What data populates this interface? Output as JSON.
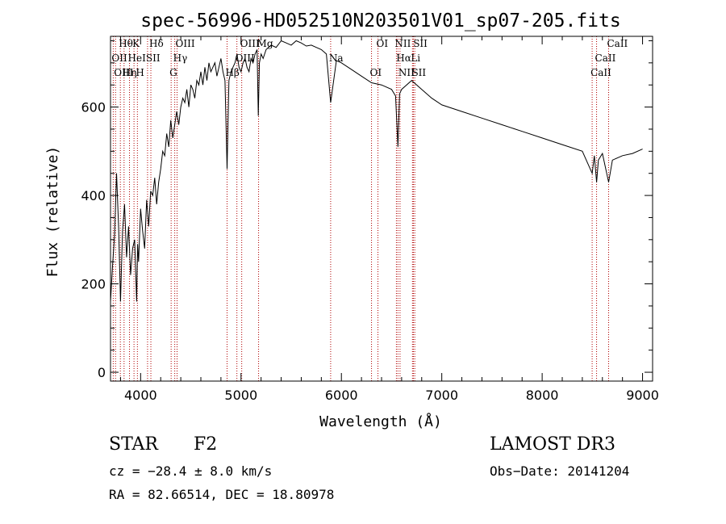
{
  "chart_data": {
    "type": "line",
    "title": "spec-56996-HD052510N203501V01_sp07-205.fits",
    "xlabel": "Wavelength (Å)",
    "ylabel": "Flux (relative)",
    "xlim": [
      3700,
      9100
    ],
    "ylim": [
      -20,
      760
    ],
    "x_ticks": [
      4000,
      5000,
      6000,
      7000,
      8000,
      9000
    ],
    "y_ticks": [
      0,
      200,
      400,
      600
    ],
    "series": [
      {
        "name": "flux",
        "x": [
          3700,
          3720,
          3740,
          3760,
          3780,
          3800,
          3820,
          3840,
          3860,
          3880,
          3900,
          3920,
          3940,
          3960,
          3970,
          3980,
          4000,
          4020,
          4040,
          4060,
          4080,
          4100,
          4120,
          4140,
          4160,
          4180,
          4200,
          4220,
          4240,
          4260,
          4280,
          4300,
          4320,
          4340,
          4360,
          4380,
          4400,
          4420,
          4440,
          4460,
          4480,
          4500,
          4520,
          4540,
          4560,
          4580,
          4600,
          4620,
          4640,
          4660,
          4680,
          4700,
          4720,
          4740,
          4760,
          4780,
          4800,
          4820,
          4840,
          4861,
          4880,
          4900,
          4920,
          4940,
          4960,
          4980,
          5000,
          5020,
          5040,
          5060,
          5080,
          5100,
          5120,
          5140,
          5160,
          5172,
          5183,
          5200,
          5220,
          5250,
          5300,
          5350,
          5400,
          5450,
          5500,
          5550,
          5600,
          5650,
          5700,
          5750,
          5800,
          5850,
          5893,
          5950,
          6000,
          6100,
          6200,
          6300,
          6400,
          6500,
          6540,
          6563,
          6580,
          6600,
          6700,
          6800,
          6900,
          7000,
          7200,
          7400,
          7600,
          7800,
          8000,
          8200,
          8400,
          8498,
          8520,
          8542,
          8560,
          8600,
          8662,
          8700,
          8800,
          8900,
          9000
        ],
        "values": [
          160,
          240,
          310,
          450,
          330,
          160,
          320,
          380,
          260,
          330,
          220,
          280,
          300,
          160,
          290,
          250,
          370,
          320,
          280,
          390,
          330,
          410,
          400,
          440,
          380,
          430,
          460,
          500,
          490,
          540,
          510,
          570,
          530,
          560,
          590,
          560,
          600,
          620,
          610,
          640,
          600,
          650,
          640,
          620,
          660,
          650,
          680,
          650,
          690,
          660,
          700,
          680,
          690,
          700,
          670,
          690,
          710,
          680,
          660,
          460,
          660,
          680,
          690,
          700,
          720,
          690,
          680,
          700,
          710,
          690,
          680,
          710,
          700,
          720,
          730,
          580,
          700,
          720,
          710,
          730,
          740,
          735,
          750,
          745,
          740,
          750,
          745,
          738,
          740,
          735,
          730,
          720,
          610,
          705,
          700,
          685,
          670,
          655,
          650,
          640,
          625,
          510,
          630,
          640,
          660,
          640,
          620,
          605,
          590,
          575,
          560,
          545,
          530,
          515,
          500,
          450,
          490,
          430,
          480,
          495,
          430,
          480,
          490,
          495,
          505
        ]
      }
    ],
    "annotations": [
      {
        "label": "Hθ",
        "wavelength": 3798
      },
      {
        "label": "OII",
        "wavelength": 3727
      },
      {
        "label": "OIII",
        "wavelength": 3750
      },
      {
        "label": "K",
        "wavelength": 3934
      },
      {
        "label": "HeI",
        "wavelength": 3889
      },
      {
        "label": "Hη",
        "wavelength": 3835
      },
      {
        "label": "Hδ",
        "wavelength": 4102
      },
      {
        "label": "SII",
        "wavelength": 4069
      },
      {
        "label": "H",
        "wavelength": 3968
      },
      {
        "label": "OIII",
        "wavelength": 4363
      },
      {
        "label": "Hγ",
        "wavelength": 4340
      },
      {
        "label": "G",
        "wavelength": 4304
      },
      {
        "label": "OIII",
        "wavelength": 5007
      },
      {
        "label": "OIII",
        "wavelength": 4959
      },
      {
        "label": "Hβ",
        "wavelength": 4861
      },
      {
        "label": "Mg",
        "wavelength": 5175
      },
      {
        "label": "Na",
        "wavelength": 5893
      },
      {
        "label": "OI",
        "wavelength": 6300
      },
      {
        "label": "OI",
        "wavelength": 6364
      },
      {
        "label": "Hα",
        "wavelength": 6563
      },
      {
        "label": "SII",
        "wavelength": 6717
      },
      {
        "label": "NII",
        "wavelength": 6548
      },
      {
        "label": "Li",
        "wavelength": 6708
      },
      {
        "label": "NII",
        "wavelength": 6584
      },
      {
        "label": "SII",
        "wavelength": 6731
      },
      {
        "label": "CaII",
        "wavelength": 8542
      },
      {
        "label": "CaII",
        "wavelength": 8498
      },
      {
        "label": "CaII",
        "wavelength": 8662
      }
    ]
  },
  "info": {
    "object_type": "STAR",
    "subclass": "F2",
    "survey": "LAMOST DR3",
    "cz": "cz = −28.4 ± 8.0 km/s",
    "obs_date": "Obs−Date: 20141204",
    "coords": "RA =  82.66514, DEC =  18.80978"
  },
  "colors": {
    "spectrum": "#000000",
    "marker": "#b00000",
    "axes": "#000000"
  }
}
